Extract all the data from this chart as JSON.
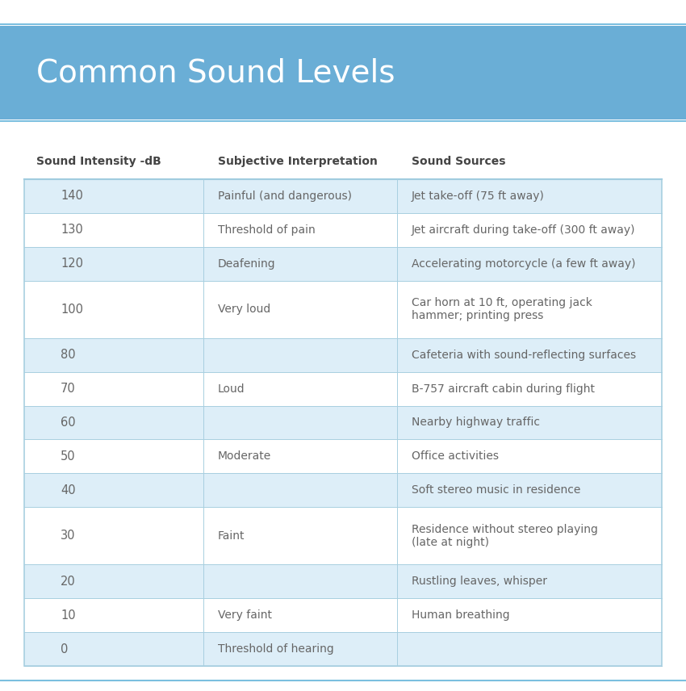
{
  "title": "Common Sound Levels",
  "title_bg_color": "#6aaed6",
  "title_text_color": "#ffffff",
  "col_headers": [
    "Sound Intensity -dB",
    "Subjective Interpretation",
    "Sound Sources"
  ],
  "header_line_color": "#7bbfdf",
  "row_shaded_color": "#ddeef8",
  "row_white_color": "#ffffff",
  "text_color": "#666666",
  "border_color": "#a8cfe0",
  "page_bg": "#f5f5f5",
  "rows": [
    {
      "db": "140",
      "interpretation": "Painful (and dangerous)",
      "sources": "Jet take-off (75 ft away)",
      "shaded": true,
      "multiline": false
    },
    {
      "db": "130",
      "interpretation": "Threshold of pain",
      "sources": "Jet aircraft during take-off (300 ft away)",
      "shaded": false,
      "multiline": false
    },
    {
      "db": "120",
      "interpretation": "Deafening",
      "sources": "Accelerating motorcycle (a few ft away)",
      "shaded": true,
      "multiline": false
    },
    {
      "db": "100",
      "interpretation": "Very loud",
      "sources": "Car horn at 10 ft, operating jack\nhammer; printing press",
      "shaded": false,
      "multiline": true
    },
    {
      "db": "80",
      "interpretation": "",
      "sources": "Cafeteria with sound-reflecting surfaces",
      "shaded": true,
      "multiline": false
    },
    {
      "db": "70",
      "interpretation": "Loud",
      "sources": "B-757 aircraft cabin during flight",
      "shaded": false,
      "multiline": false
    },
    {
      "db": "60",
      "interpretation": "",
      "sources": "Nearby highway traffic",
      "shaded": true,
      "multiline": false
    },
    {
      "db": "50",
      "interpretation": "Moderate",
      "sources": "Office activities",
      "shaded": false,
      "multiline": false
    },
    {
      "db": "40",
      "interpretation": "",
      "sources": "Soft stereo music in residence",
      "shaded": true,
      "multiline": false
    },
    {
      "db": "30",
      "interpretation": "Faint",
      "sources": "Residence without stereo playing\n(late at night)",
      "shaded": false,
      "multiline": true
    },
    {
      "db": "20",
      "interpretation": "",
      "sources": "Rustling leaves, whisper",
      "shaded": true,
      "multiline": false
    },
    {
      "db": "10",
      "interpretation": "Very faint",
      "sources": "Human breathing",
      "shaded": false,
      "multiline": false
    },
    {
      "db": "0",
      "interpretation": "Threshold of hearing",
      "sources": "",
      "shaded": true,
      "multiline": false
    }
  ],
  "fig_width": 8.5,
  "fig_height": 8.56,
  "dpi": 100
}
